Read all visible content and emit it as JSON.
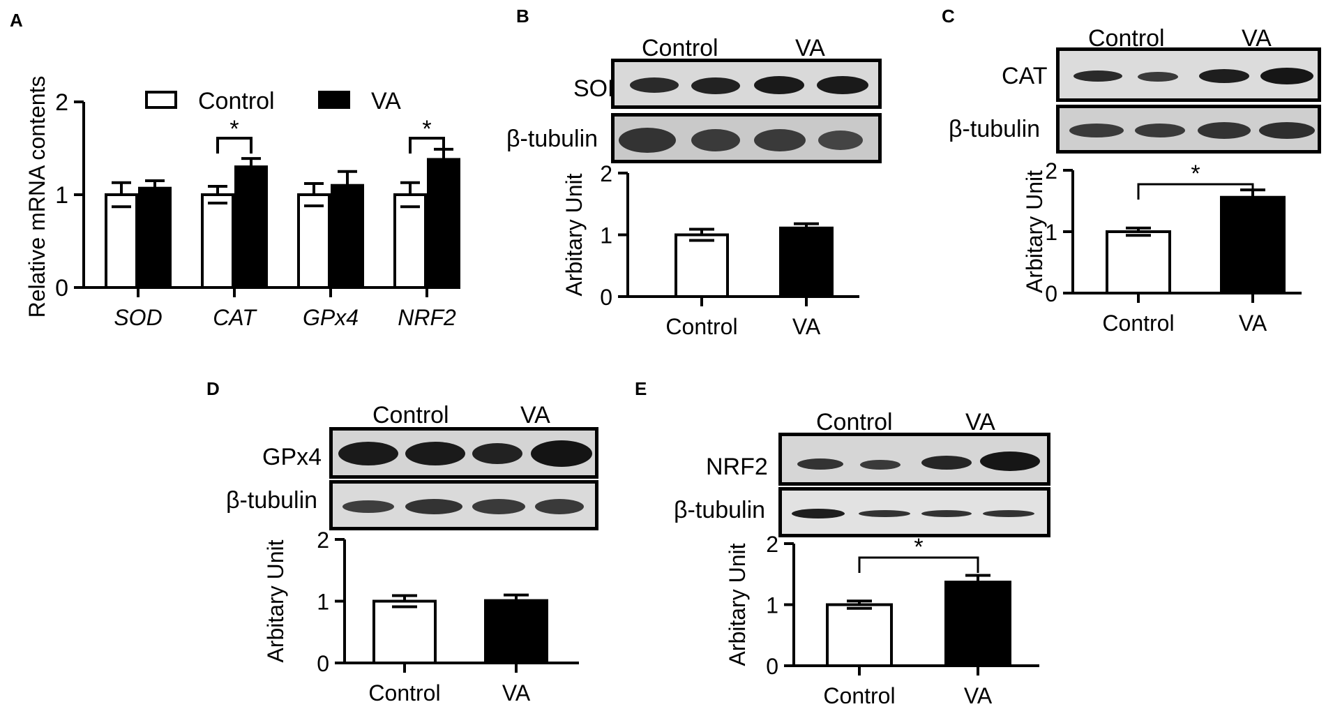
{
  "figure": {
    "panels": {
      "A": {
        "letter": "A"
      },
      "B": {
        "letter": "B",
        "blot_header": [
          "Control",
          "VA"
        ],
        "rows": [
          "SOD",
          "β-tubulin"
        ]
      },
      "C": {
        "letter": "C",
        "blot_header": [
          "Control",
          "VA"
        ],
        "rows": [
          "CAT",
          "β-tubulin"
        ]
      },
      "D": {
        "letter": "D",
        "blot_header": [
          "Control",
          "VA"
        ],
        "rows": [
          "GPx4",
          "β-tubulin"
        ]
      },
      "E": {
        "letter": "E",
        "blot_header": [
          "Control",
          "VA"
        ],
        "rows": [
          "NRF2",
          "β-tubulin"
        ]
      }
    }
  },
  "colors": {
    "control_fill": "#ffffff",
    "va_fill": "#000000",
    "axis": "#000000"
  },
  "chart_data": [
    {
      "panel": "A",
      "type": "bar",
      "categories": [
        "SOD",
        "CAT",
        "GPx4",
        "NRF2"
      ],
      "series": [
        {
          "name": "Control",
          "values": [
            1.0,
            1.0,
            1.0,
            1.0
          ],
          "errors": [
            0.13,
            0.09,
            0.12,
            0.13
          ]
        },
        {
          "name": "VA",
          "values": [
            1.07,
            1.3,
            1.1,
            1.38
          ],
          "errors": [
            0.08,
            0.09,
            0.15,
            0.11
          ]
        }
      ],
      "significance": [
        {
          "category": "CAT",
          "label": "*"
        },
        {
          "category": "NRF2",
          "label": "*"
        }
      ],
      "ylabel": "Relative mRNA contents",
      "ylim": [
        0,
        2
      ],
      "yticks": [
        "0",
        "1",
        "2"
      ],
      "legend": "top"
    },
    {
      "panel": "B",
      "type": "bar",
      "categories": [
        "Control",
        "VA"
      ],
      "values": [
        1.0,
        1.11
      ],
      "errors": [
        0.09,
        0.07
      ],
      "ylabel": "Arbitary Unit",
      "ylim": [
        0,
        2
      ],
      "yticks": [
        "0",
        "1",
        "2"
      ]
    },
    {
      "panel": "C",
      "type": "bar",
      "categories": [
        "Control",
        "VA"
      ],
      "values": [
        1.0,
        1.56
      ],
      "errors": [
        0.06,
        0.12
      ],
      "significance": [
        {
          "label": "*"
        }
      ],
      "ylabel": "Arbitary Unit",
      "ylim": [
        0,
        2
      ],
      "yticks": [
        "0",
        "1",
        "2"
      ]
    },
    {
      "panel": "D",
      "type": "bar",
      "categories": [
        "Control",
        "VA"
      ],
      "values": [
        1.0,
        1.01
      ],
      "errors": [
        0.09,
        0.09
      ],
      "ylabel": "Arbitary Unit",
      "ylim": [
        0,
        2
      ],
      "yticks": [
        "0",
        "1",
        "2"
      ]
    },
    {
      "panel": "E",
      "type": "bar",
      "categories": [
        "Control",
        "VA"
      ],
      "values": [
        1.0,
        1.37
      ],
      "errors": [
        0.06,
        0.11
      ],
      "significance": [
        {
          "label": "*"
        }
      ],
      "ylabel": "Arbitary Unit",
      "ylim": [
        0,
        2
      ],
      "yticks": [
        "0",
        "1",
        "2"
      ]
    }
  ]
}
